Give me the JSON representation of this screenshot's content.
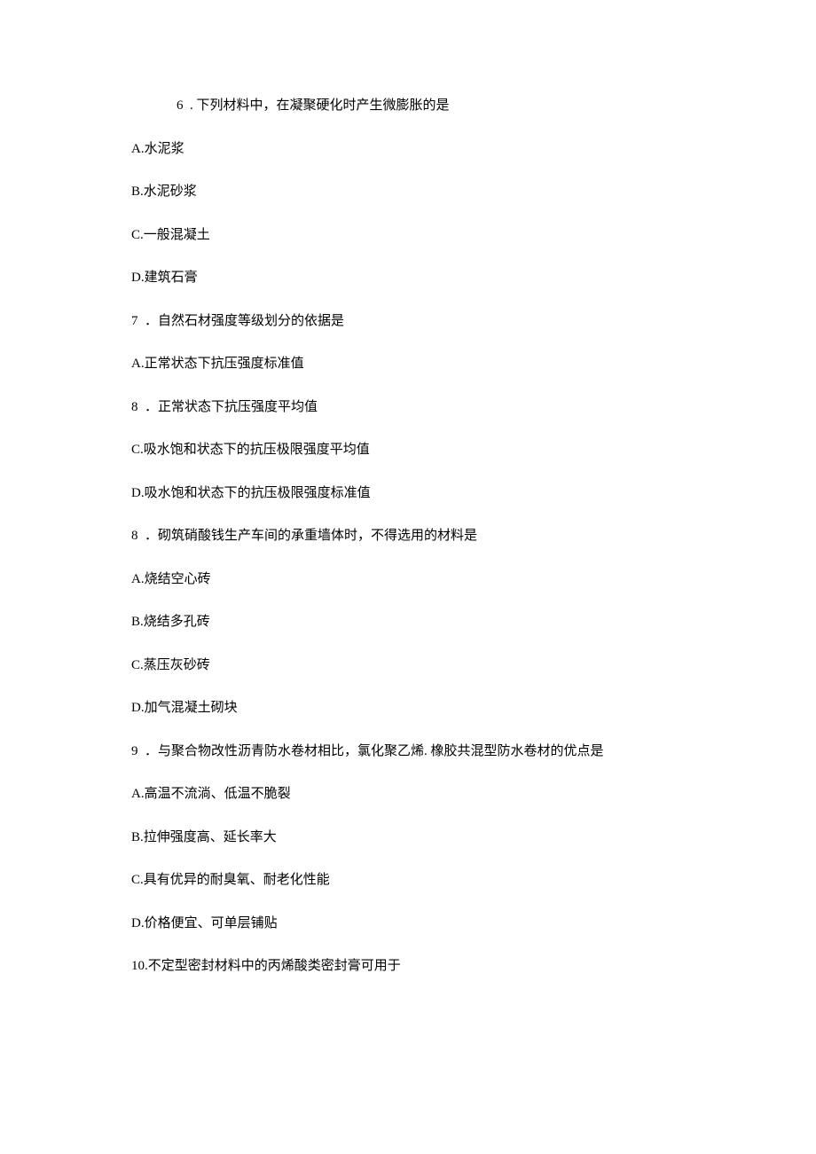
{
  "questions": [
    {
      "number": "6",
      "prompt": ". 下列材料中，在凝聚硬化时产生微膨胀的是",
      "indent": true,
      "options": [
        {
          "label": "A.",
          "text": "水泥浆"
        },
        {
          "label": "B.",
          "text": "水泥砂浆"
        },
        {
          "label": "C.",
          "text": "一般混凝土"
        },
        {
          "label": "D.",
          "text": "建筑石膏"
        }
      ]
    },
    {
      "number": "7",
      "prompt": "．自然石材强度等级划分的依据是",
      "indent": false,
      "options": [
        {
          "label": "A.",
          "text": "正常状态下抗压强度标准值"
        },
        {
          "label": "8",
          "text": "．正常状态下抗压强度平均值"
        },
        {
          "label": "C.",
          "text": "吸水饱和状态下的抗压极限强度平均值"
        },
        {
          "label": "D.",
          "text": "吸水饱和状态下的抗压极限强度标准值"
        }
      ]
    },
    {
      "number": "8",
      "prompt": "．砌筑硝酸钱生产车间的承重墙体时，不得选用的材料是",
      "indent": false,
      "options": [
        {
          "label": "A.",
          "text": "烧结空心砖"
        },
        {
          "label": "B.",
          "text": "烧结多孔砖"
        },
        {
          "label": "C.",
          "text": "蒸压灰砂砖"
        },
        {
          "label": "D.",
          "text": "加气混凝土砌块"
        }
      ]
    },
    {
      "number": "9",
      "prompt": "．与聚合物改性沥青防水卷材相比，氯化聚乙烯. 橡胶共混型防水卷材的优点是",
      "indent": false,
      "options": [
        {
          "label": "A.",
          "text": "高温不流淌、低温不脆裂"
        },
        {
          "label": "B.",
          "text": "拉伸强度高、延长率大"
        },
        {
          "label": "C.",
          "text": "具有优异的耐臭氧、耐老化性能"
        },
        {
          "label": "D.",
          "text": "价格便宜、可单层铺贴"
        }
      ]
    },
    {
      "number": "10.",
      "prompt": "不定型密封材料中的丙烯酸类密封膏可用于",
      "indent": false,
      "nospacenum": true,
      "options": []
    }
  ]
}
